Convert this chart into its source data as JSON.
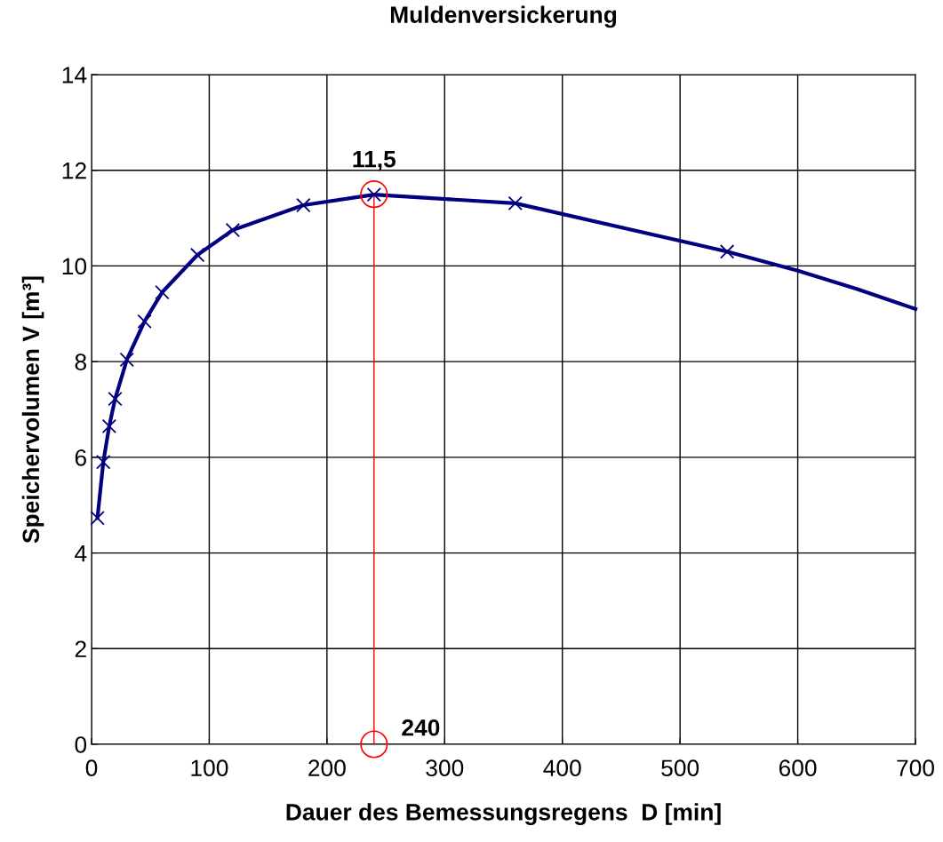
{
  "chart_data": {
    "type": "line",
    "title": "Muldenversickerung",
    "xlabel": "Dauer des Bemessungsregens  D [min]",
    "ylabel": "Speichervolumen V [m³]",
    "series": [
      {
        "color": "#000080",
        "marker": "cross",
        "x": [
          5,
          10,
          15,
          20,
          30,
          45,
          60,
          90,
          120,
          180,
          240,
          360,
          540
        ],
        "values": [
          4.73,
          5.9,
          6.65,
          7.22,
          8.04,
          8.84,
          9.45,
          10.23,
          10.75,
          11.27,
          11.49,
          11.31,
          10.3
        ]
      },
      {
        "color": "#000080",
        "marker": "none",
        "x": [
          540,
          600,
          650,
          700
        ],
        "values": [
          10.3,
          9.9,
          9.52,
          9.1
        ]
      },
      {
        "color": "#ff0000",
        "marker": "circle",
        "line_style": "solid",
        "x": [
          240,
          240
        ],
        "values": [
          0,
          11.5
        ]
      }
    ],
    "annotations": [
      {
        "text": "11,5",
        "x": 240,
        "y": 11.5
      },
      {
        "text": "240",
        "x": 240,
        "y": 0
      }
    ],
    "xlim": [
      0,
      700
    ],
    "xticks": [
      0,
      100,
      200,
      300,
      400,
      500,
      600,
      700
    ],
    "ylim": [
      0,
      14
    ],
    "yticks": [
      0,
      2,
      4,
      6,
      8,
      10,
      12,
      14
    ],
    "grid": true
  }
}
